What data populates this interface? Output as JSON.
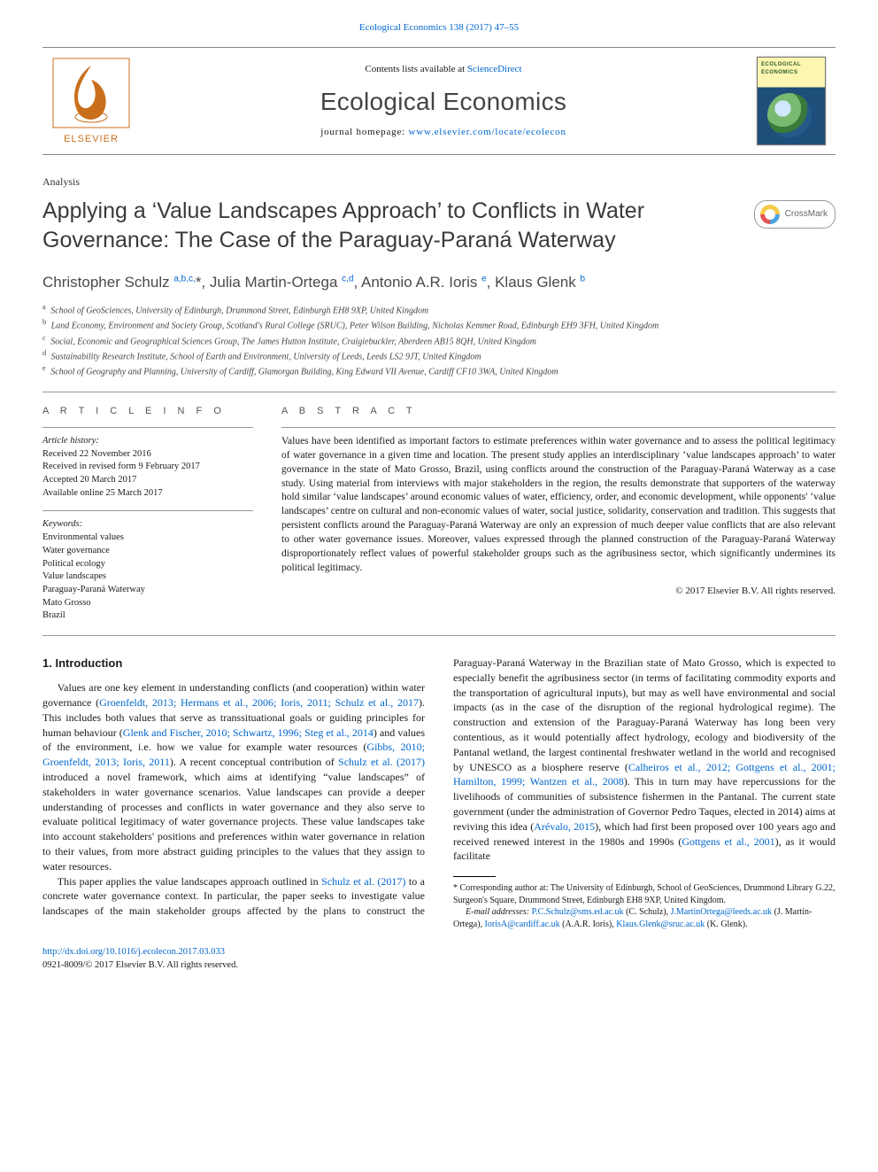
{
  "top_citation": {
    "journal_link_text": "Ecological Economics 138 (2017) 47–55"
  },
  "masthead": {
    "contents_prefix": "Contents lists available at ",
    "contents_link": "ScienceDirect",
    "journal_name": "Ecological Economics",
    "homepage_prefix": "journal homepage: ",
    "homepage_link": "www.elsevier.com/locate/ecolecon"
  },
  "article_type": "Analysis",
  "title": "Applying a ‘Value Landscapes Approach’ to Conflicts in Water Governance: The Case of the Paraguay-Paraná Waterway",
  "crossmark_label": "CrossMark",
  "authors_html": "Christopher Schulz <sup>a,b,c,</sup>*, Julia Martin-Ortega <sup>c,d</sup>, Antonio A.R. Ioris <sup>e</sup>, Klaus Glenk <sup>b</sup>",
  "affiliations": [
    {
      "key": "a",
      "text": "School of GeoSciences, University of Edinburgh, Drummond Street, Edinburgh EH8 9XP, United Kingdom"
    },
    {
      "key": "b",
      "text": "Land Economy, Environment and Society Group, Scotland's Rural College (SRUC), Peter Wilson Building, Nicholas Kemmer Road, Edinburgh EH9 3FH, United Kingdom"
    },
    {
      "key": "c",
      "text": "Social, Economic and Geographical Sciences Group, The James Hutton Institute, Craigiebuckler, Aberdeen AB15 8QH, United Kingdom"
    },
    {
      "key": "d",
      "text": "Sustainability Research Institute, School of Earth and Environment, University of Leeds, Leeds LS2 9JT, United Kingdom"
    },
    {
      "key": "e",
      "text": "School of Geography and Planning, University of Cardiff, Glamorgan Building, King Edward VII Avenue, Cardiff CF10 3WA, United Kingdom"
    }
  ],
  "article_info": {
    "head": "A R T I C L E   I N F O",
    "history_label": "Article history:",
    "history": [
      "Received 22 November 2016",
      "Received in revised form 9 February 2017",
      "Accepted 20 March 2017",
      "Available online 25 March 2017"
    ],
    "keywords_label": "Keywords:",
    "keywords": [
      "Environmental values",
      "Water governance",
      "Political ecology",
      "Value landscapes",
      "Paraguay-Paraná Waterway",
      "Mato Grosso",
      "Brazil"
    ]
  },
  "abstract": {
    "head": "A B S T R A C T",
    "text": "Values have been identified as important factors to estimate preferences within water governance and to assess the political legitimacy of water governance in a given time and location. The present study applies an interdisciplinary ‘value landscapes approach’ to water governance in the state of Mato Grosso, Brazil, using conflicts around the construction of the Paraguay-Paraná Waterway as a case study. Using material from interviews with major stakeholders in the region, the results demonstrate that supporters of the waterway hold similar ‘value landscapes’ around economic values of water, efficiency, order, and economic development, while opponents' ‘value landscapes’ centre on cultural and non-economic values of water, social justice, solidarity, conservation and tradition. This suggests that persistent conflicts around the Paraguay-Paraná Waterway are only an expression of much deeper value conflicts that are also relevant to other water governance issues. Moreover, values expressed through the planned construction of the Paraguay-Paraná Waterway disproportionately reflect values of powerful stakeholder groups such as the agribusiness sector, which significantly undermines its political legitimacy.",
    "copyright": "© 2017 Elsevier B.V. All rights reserved."
  },
  "intro": {
    "heading": "1. Introduction",
    "p1_a": "Values are one key element in understanding conflicts (and cooperation) within water governance (",
    "p1_link1": "Groenfeldt, 2013; Hermans et al., 2006; Ioris, 2011; Schulz et al., 2017",
    "p1_b": "). This includes both values that serve as transsituational goals or guiding principles for human behaviour (",
    "p1_link2": "Glenk and Fischer, 2010; Schwartz, 1996; Steg et al., 2014",
    "p1_c": ") and values of the environment, i.e. how we value for example water resources (",
    "p1_link3": "Gibbs, 2010; Groenfeldt, 2013; Ioris, 2011",
    "p1_d": "). A recent conceptual contribution of ",
    "p1_link4": "Schulz et al. (2017)",
    "p1_e": " introduced a novel framework, which aims at identifying “value landscapes” of stakeholders in water governance scenarios. Value landscapes can provide a deeper understanding of processes and conflicts in water governance and they also serve to evaluate political legitimacy of water governance projects. These value landscapes take into account stakeholders' positions and preferences within water governance in relation to their values, from more abstract guiding principles to the values that they assign to water resources.",
    "p2_a": "This paper applies the value landscapes approach outlined in ",
    "p2_link1": "Schulz et al. (2017)",
    "p2_b": " to a concrete water governance context. In particular, the paper seeks to investigate value landscapes of the main stakeholder groups affected by the plans to construct the Paraguay-Paraná Waterway in the Brazilian state of Mato Grosso, which is expected to especially benefit the agribusiness sector (in terms of facilitating commodity exports and the transportation of agricultural inputs), but may as well have environmental and social impacts (as in the case of the disruption of the regional hydrological regime). The construction and extension of the Paraguay-Paraná Waterway has long been very contentious, as it would potentially affect hydrology, ecology and biodiversity of the Pantanal wetland, the largest continental freshwater wetland in the world and recognised by UNESCO as a biosphere reserve (",
    "p2_link2": "Calheiros et al., 2012; Gottgens et al., 2001; Hamilton, 1999; Wantzen et al., 2008",
    "p2_c": "). This in turn may have repercussions for the livelihoods of communities of subsistence fishermen in the Pantanal. The current state government (under the administration of Governor Pedro Taques, elected in 2014) aims at reviving this idea (",
    "p2_link3": "Arévalo, 2015",
    "p2_d": "), which had first been proposed over 100 years ago and received renewed interest in the 1980s and 1990s (",
    "p2_link4": "Gottgens et al., 2001",
    "p2_e": "), as it would facilitate"
  },
  "corresponding": {
    "star": "*",
    "text": "Corresponding author at: The University of Edinburgh, School of GeoSciences, Drummond Library G.22, Surgeon's Square, Drummond Street, Edinburgh EH8 9XP, United Kingdom.",
    "emails_label": "E-mail addresses: ",
    "emails": [
      {
        "addr": "P.C.Schulz@sms.ed.ac.uk",
        "who": "(C. Schulz)"
      },
      {
        "addr": "J.MartinOrtega@leeds.ac.uk",
        "who": "(J. Martin-Ortega)"
      },
      {
        "addr": "IorisA@cardiff.ac.uk",
        "who": "(A.A.R. Ioris)"
      },
      {
        "addr": "Klaus.Glenk@sruc.ac.uk",
        "who": "(K. Glenk)"
      }
    ]
  },
  "footer": {
    "doi": "http://dx.doi.org/10.1016/j.ecolecon.2017.03.033",
    "issn_line": "0921-8009/© 2017 Elsevier B.V. All rights reserved."
  },
  "colors": {
    "link": "#0066cc",
    "text": "#1a1a1a",
    "heading_gray": "#3a3a3a",
    "rule": "#999999"
  }
}
